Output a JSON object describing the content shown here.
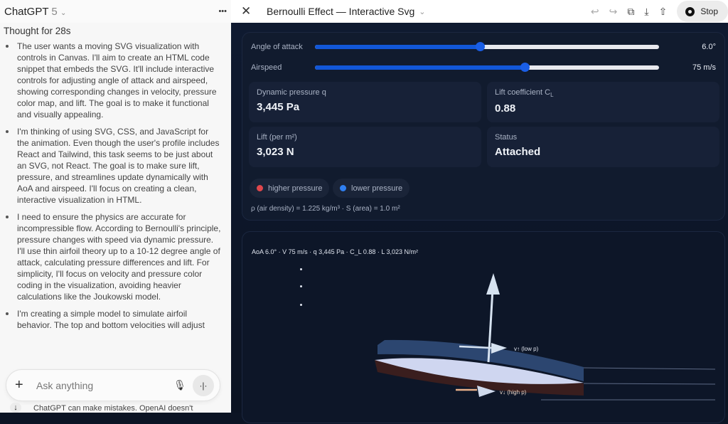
{
  "chat": {
    "model": "ChatGPT",
    "version": "5",
    "more": "•••",
    "thought": "Thought for 28s",
    "bullets": [
      "The user wants a moving SVG visualization with controls in Canvas. I'll aim to create an HTML code snippet that embeds the SVG. It'll include interactive controls for adjusting angle of attack and airspeed, showing corresponding changes in velocity, pressure color map, and lift. The goal is to make it functional and visually appealing.",
      "I'm thinking of using SVG, CSS, and JavaScript for the animation. Even though the user's profile includes React and Tailwind, this task seems to be just about an SVG, not React. The goal is to make sure lift, pressure, and streamlines update dynamically with AoA and airspeed. I'll focus on creating a clean, interactive visualization in HTML.",
      "I need to ensure the physics are accurate for incompressible flow. According to Bernoulli's principle, pressure changes with speed via dynamic pressure. I'll use thin airfoil theory up to a 10-12 degree angle of attack, calculating pressure differences and lift. For simplicity, I'll focus on velocity and pressure color coding in the visualization, avoiding heavier calculations like the Joukowski model.",
      "I'm creating a simple model to simulate airfoil behavior. The top and bottom velocities will adjust"
    ],
    "input_placeholder": "Ask anything",
    "footer": "ChatGPT can make mistakes. OpenAI doesn't"
  },
  "canvas": {
    "title": "Bernoulli Effect — Interactive Svg",
    "stop": "Stop",
    "sliders": [
      {
        "label": "Angle of attack",
        "value": "6.0°",
        "fraction": 0.48
      },
      {
        "label": "Airspeed",
        "value": "75 m/s",
        "fraction": 0.61
      }
    ],
    "stats": [
      {
        "label": "Dynamic pressure q",
        "value": "3,445 Pa"
      },
      {
        "label": "Lift coefficient C",
        "sub": "L",
        "value": "0.88"
      },
      {
        "label": "Lift (per m²)",
        "value": "3,023 N"
      },
      {
        "label": "Status",
        "value": "Attached"
      }
    ],
    "legend": [
      {
        "label": "higher pressure",
        "color": "#e0474c"
      },
      {
        "label": "lower pressure",
        "color": "#2f7ff0"
      }
    ],
    "density": "ρ (air density) = 1.225 kg/m³ · S (area) = 1.0 m²",
    "caption": "AoA 6.0° · V 75 m/s · q 3,445 Pa · C_L 0.88 · L 3,023 N/m²",
    "upper_label": "v↑ (low p)",
    "lower_label": "v↓ (high p)"
  }
}
